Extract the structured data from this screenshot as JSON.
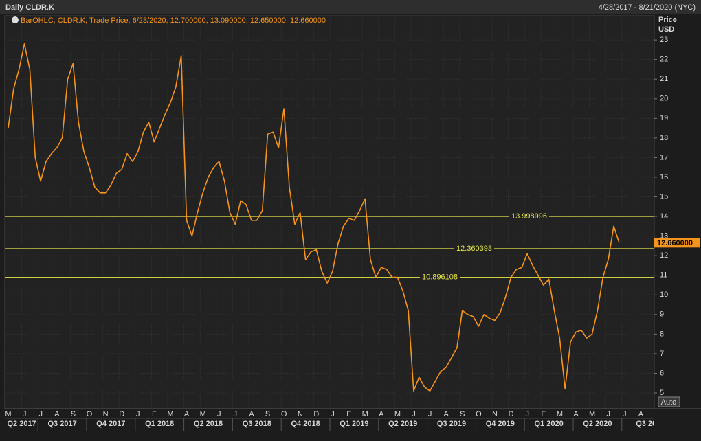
{
  "header": {
    "title": "Daily CLDR.K",
    "range": "4/28/2017 - 8/21/2020 (NYC)"
  },
  "chart_data": {
    "type": "line",
    "legend": "BarOHLC, CLDR.K, Trade Price, 6/23/2020, 12.700000, 13.090000, 12.650000, 12.660000",
    "y_axis_label": "Price",
    "y_axis_unit": "USD",
    "color": "#f7941d",
    "categories": [
      "M",
      null,
      null,
      "J",
      null,
      null,
      "J",
      null,
      null,
      "A",
      null,
      null,
      "S",
      null,
      null,
      "O",
      null,
      null,
      "N",
      null,
      null,
      "D",
      null,
      null,
      "J",
      null,
      null,
      "F",
      null,
      null,
      "M",
      null,
      null,
      "A",
      null,
      null,
      "M",
      null,
      null,
      "J",
      null,
      null,
      "J",
      null,
      null,
      "A",
      null,
      null,
      "S",
      null,
      null,
      "O",
      null,
      null,
      "N",
      null,
      null,
      "D",
      null,
      null,
      "J",
      null,
      null,
      "F",
      null,
      null,
      "M",
      null,
      null,
      "A",
      null,
      null,
      "M",
      null,
      null,
      "J",
      null,
      null,
      "J",
      null,
      null,
      "A",
      null,
      null,
      "S",
      null,
      null,
      "O",
      null,
      null,
      "N",
      null,
      null,
      "D",
      null,
      null,
      "J",
      null,
      null,
      "F",
      null,
      null,
      "M",
      null,
      null,
      "A",
      null,
      null,
      "M",
      null,
      null,
      "J",
      null,
      null,
      "J",
      null,
      null,
      "A",
      null,
      null
    ],
    "values": [
      18.5,
      20.5,
      21.5,
      22.8,
      21.5,
      17,
      15.8,
      16.8,
      17.2,
      17.5,
      18,
      21,
      21.8,
      18.8,
      17.3,
      16.5,
      15.5,
      15.2,
      15.2,
      15.6,
      16.2,
      16.4,
      17.2,
      16.8,
      17.3,
      18.3,
      18.8,
      17.8,
      18.5,
      19.2,
      19.8,
      20.6,
      22.2,
      13.8,
      13,
      14.2,
      15.2,
      16,
      16.5,
      16.8,
      15.8,
      14.2,
      13.6,
      14.8,
      14.6,
      13.8,
      13.8,
      14.3,
      18.2,
      18.3,
      17.5,
      19.5,
      15.5,
      13.6,
      14.2,
      11.8,
      12.2,
      12.3,
      11.2,
      10.6,
      11.2,
      12.6,
      13.5,
      13.9,
      13.8,
      14.3,
      14.9,
      11.8,
      10.9,
      11.4,
      11.3,
      10.9,
      10.9,
      10.2,
      9.2,
      5.1,
      5.8,
      5.3,
      5.1,
      5.6,
      6.1,
      6.3,
      6.8,
      7.3,
      9.2,
      9,
      8.9,
      8.4,
      9,
      8.8,
      8.7,
      9.1,
      9.9,
      10.9,
      11.3,
      11.4,
      12.1,
      11.5,
      11,
      10.5,
      10.8,
      9.2,
      7.8,
      5.2,
      7.6,
      8.1,
      8.2,
      7.8,
      8,
      9.2,
      10.9,
      11.8,
      13.5,
      12.66,
      null,
      null,
      null,
      null,
      null,
      null
    ],
    "quarters": [
      "Q2 2017",
      "Q3 2017",
      "Q4 2017",
      "Q1 2018",
      "Q2 2018",
      "Q3 2018",
      "Q4 2018",
      "Q1 2019",
      "Q2 2019",
      "Q3 2019",
      "Q4 2019",
      "Q1 2020",
      "Q2 2020",
      "Q3 20"
    ],
    "ylim": [
      4.72,
      23.46
    ],
    "yticks": [
      5,
      6,
      7,
      8,
      9,
      10,
      11,
      12,
      13,
      14,
      15,
      16,
      17,
      18,
      19,
      20,
      21,
      22,
      23
    ],
    "grid": true,
    "hlines": [
      13.998996,
      12.360393,
      10.896108
    ],
    "hline_color": "#e8e84a",
    "last_price": {
      "value": 12.66,
      "label": "12.660000"
    },
    "auto_button": "Auto"
  }
}
